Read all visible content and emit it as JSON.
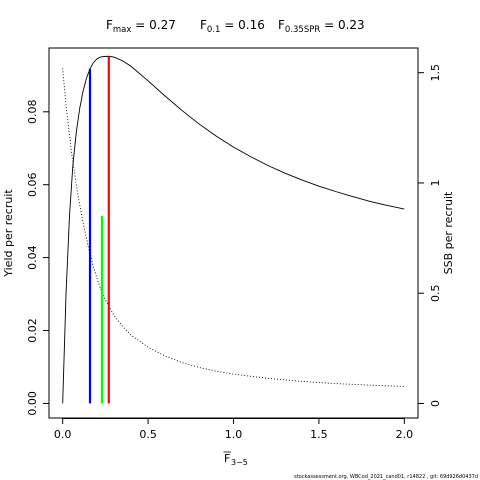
{
  "chart_data": {
    "type": "line",
    "title": {
      "fmax_label": "F",
      "fmax_sub": "max",
      "fmax_value": " = 0.27",
      "f01_label": "F",
      "f01_sub": "0.1",
      "f01_value": " = 0.16",
      "fspr_label": "F",
      "fspr_sub": "0.35SPR",
      "fspr_value": " = 0.23"
    },
    "xlabel": {
      "main": "F",
      "sub": "3−5"
    },
    "ylabel_left": "Yield per recruit",
    "ylabel_right": "SSB per recruit",
    "xlim": [
      -0.08,
      2.08
    ],
    "ylim_left": [
      -0.004,
      0.0975
    ],
    "ylim_right": [
      -0.066,
      1.612
    ],
    "x_ticks": [
      {
        "v": 0.0,
        "label": "0.0"
      },
      {
        "v": 0.5,
        "label": "0.5"
      },
      {
        "v": 1.0,
        "label": "1.0"
      },
      {
        "v": 1.5,
        "label": "1.5"
      },
      {
        "v": 2.0,
        "label": "2.0"
      }
    ],
    "y_left_ticks": [
      {
        "v": 0.0,
        "label": "0.00"
      },
      {
        "v": 0.02,
        "label": "0.02"
      },
      {
        "v": 0.04,
        "label": "0.04"
      },
      {
        "v": 0.06,
        "label": "0.06"
      },
      {
        "v": 0.08,
        "label": "0.08"
      }
    ],
    "y_right_ticks": [
      {
        "v": 0.0,
        "label": "0"
      },
      {
        "v": 0.5,
        "label": "0.5"
      },
      {
        "v": 1.0,
        "label": "1"
      },
      {
        "v": 1.5,
        "label": "1.5"
      }
    ],
    "series": [
      {
        "axis": "left",
        "style": "solid",
        "color": "#000000",
        "x": [
          0,
          0.02,
          0.04,
          0.06,
          0.08,
          0.1,
          0.12,
          0.14,
          0.16,
          0.18,
          0.2,
          0.22,
          0.25,
          0.27,
          0.3,
          0.35,
          0.4,
          0.5,
          0.6,
          0.7,
          0.8,
          0.9,
          1.0,
          1.1,
          1.2,
          1.3,
          1.4,
          1.5,
          1.6,
          1.7,
          1.8,
          1.9,
          2.0
        ],
        "y": [
          0,
          0.0305,
          0.0515,
          0.0655,
          0.0745,
          0.081,
          0.0858,
          0.0893,
          0.0918,
          0.0935,
          0.0945,
          0.095,
          0.0952,
          0.0952,
          0.095,
          0.094,
          0.0925,
          0.0885,
          0.0843,
          0.0803,
          0.0766,
          0.0733,
          0.0703,
          0.0677,
          0.0653,
          0.0632,
          0.0613,
          0.0596,
          0.0581,
          0.0567,
          0.0554,
          0.0543,
          0.0533
        ]
      },
      {
        "axis": "right",
        "style": "dotted",
        "color": "#000000",
        "x": [
          0,
          0.02,
          0.05,
          0.08,
          0.1,
          0.12,
          0.15,
          0.18,
          0.2,
          0.23,
          0.25,
          0.3,
          0.35,
          0.4,
          0.5,
          0.6,
          0.7,
          0.8,
          0.9,
          1.0,
          1.2,
          1.4,
          1.6,
          1.8,
          2.0
        ],
        "y": [
          1.52,
          1.35,
          1.15,
          0.99,
          0.9,
          0.82,
          0.71,
          0.62,
          0.57,
          0.5,
          0.47,
          0.4,
          0.35,
          0.31,
          0.255,
          0.215,
          0.185,
          0.163,
          0.146,
          0.133,
          0.114,
          0.1,
          0.09,
          0.083,
          0.077
        ]
      }
    ],
    "reference_lines": [
      {
        "name": "F0.1",
        "color": "#0000ff",
        "x": 0.16,
        "y": 0.0918
      },
      {
        "name": "F0.35SPR",
        "color": "#00ff00",
        "x": 0.23,
        "y": 0.0514
      },
      {
        "name": "Fmax",
        "color": "#ff0000",
        "x": 0.27,
        "y": 0.0952
      }
    ],
    "footer": "stockassessment.org, WBCod_2021_cand01, r14822 , git: 69d926d0437d"
  }
}
